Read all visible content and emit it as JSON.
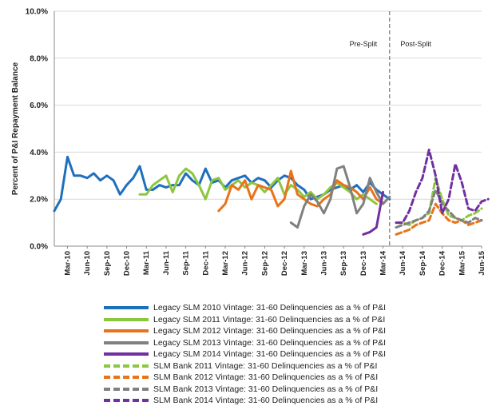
{
  "chart_data": {
    "type": "line",
    "ylabel": "Percent of P&I Repayment  Balance",
    "ylim": [
      0,
      10
    ],
    "y_ticks": [
      "0.0%",
      "2.0%",
      "4.0%",
      "6.0%",
      "8.0%",
      "10.0%"
    ],
    "y_tick_values": [
      0,
      2,
      4,
      6,
      8,
      10
    ],
    "x_ticks": [
      "Mar-10",
      "Jun-10",
      "Sep-10",
      "Dec-10",
      "Mar-11",
      "Jun-11",
      "Sep-11",
      "Dec-11",
      "Mar-12",
      "Jun-12",
      "Sep-12",
      "Dec-12",
      "Mar-13",
      "Jun-13",
      "Sep-13",
      "Dec-13",
      "Mar-14",
      "Jun-14",
      "Sep-14",
      "Dec-14",
      "Mar-15",
      "Jun-15"
    ],
    "x_tick_months": [
      "2010-03",
      "2010-06",
      "2010-09",
      "2010-12",
      "2011-03",
      "2011-06",
      "2011-09",
      "2011-12",
      "2012-03",
      "2012-06",
      "2012-09",
      "2012-12",
      "2013-03",
      "2013-06",
      "2013-09",
      "2013-12",
      "2014-03",
      "2014-06",
      "2014-09",
      "2014-12",
      "2015-03",
      "2015-06"
    ],
    "split_date": "2014-04",
    "regions": [
      {
        "label": "Pre-Split",
        "x": "2013-12"
      },
      {
        "label": "Post-Split",
        "x": "2014-08"
      }
    ],
    "series": [
      {
        "name": "Legacy SLM 2010 Vintage: 31-60 Delinquencies as a % of P&I",
        "color": "#1f6fbf",
        "dash": false,
        "start": "2010-01",
        "values": [
          1.5,
          2.0,
          3.8,
          3.0,
          3.0,
          2.9,
          3.1,
          2.8,
          3.0,
          2.8,
          2.2,
          2.6,
          2.9,
          3.4,
          2.4,
          2.4,
          2.6,
          2.5,
          2.6,
          2.6,
          3.1,
          2.8,
          2.6,
          3.3,
          2.7,
          2.8,
          2.5,
          2.8,
          2.9,
          3.0,
          2.7,
          2.9,
          2.8,
          2.5,
          2.8,
          3.0,
          2.9,
          2.6,
          2.4,
          2.0,
          2.1,
          2.2,
          2.4,
          2.5,
          2.6,
          2.4,
          2.6,
          2.3,
          2.7,
          2.4,
          2.2,
          2.0
        ]
      },
      {
        "name": "Legacy SLM 2011 Vintage: 31-60 Delinquencies as a % of P&I",
        "color": "#8dc63f",
        "dash": false,
        "start": "2011-02",
        "values": [
          2.2,
          2.2,
          2.6,
          2.8,
          3.0,
          2.3,
          3.0,
          3.3,
          3.1,
          2.6,
          2.0,
          2.8,
          2.9,
          2.4,
          2.6,
          2.8,
          2.5,
          2.7,
          2.6,
          2.3,
          2.6,
          2.9,
          2.2,
          2.6,
          2.4,
          2.1,
          2.3,
          2.0,
          2.2,
          2.5,
          2.7,
          2.5,
          2.3,
          2.0,
          2.2,
          2.0,
          1.8
        ]
      },
      {
        "name": "Legacy SLM 2012 Vintage: 31-60 Delinquencies as a % of P&I",
        "color": "#e8731a",
        "dash": false,
        "start": "2012-02",
        "values": [
          1.5,
          1.8,
          2.6,
          2.4,
          2.8,
          2.0,
          2.6,
          2.5,
          2.4,
          1.7,
          2.0,
          3.2,
          2.2,
          2.0,
          1.8,
          1.7,
          2.0,
          2.2,
          2.8,
          2.6,
          2.5,
          2.3,
          2.0,
          2.5,
          2.0,
          1.8
        ]
      },
      {
        "name": "Legacy SLM 2013 Vintage: 31-60 Delinquencies as a % of P&I",
        "color": "#808080",
        "dash": false,
        "start": "2013-01",
        "values": [
          1.0,
          0.8,
          1.7,
          2.2,
          1.9,
          1.4,
          2.0,
          3.3,
          3.4,
          2.5,
          1.4,
          1.8,
          2.9,
          2.3,
          1.8,
          2.1
        ]
      },
      {
        "name": "Legacy SLM 2014 Vintage: 31-60 Delinquencies as a % of P&I",
        "color": "#7030a0",
        "dash": false,
        "start": "2013-12",
        "values": [
          0.5,
          0.6,
          0.8,
          2.3
        ]
      },
      {
        "name": "SLM Bank 2011 Vintage: 31-60 Delinquencies as a % of P&I",
        "color": "#8dc63f",
        "dash": true,
        "start": "2014-05",
        "values": [
          1.0,
          1.0,
          0.9,
          1.1,
          1.2,
          1.4,
          2.9,
          2.0,
          1.3,
          1.2,
          1.1,
          1.3,
          1.4,
          1.6
        ]
      },
      {
        "name": "SLM Bank 2012 Vintage: 31-60 Delinquencies as a % of P&I",
        "color": "#e8731a",
        "dash": true,
        "start": "2014-05",
        "values": [
          0.5,
          0.6,
          0.7,
          0.9,
          1.0,
          1.1,
          1.8,
          1.4,
          1.1,
          1.0,
          1.1,
          0.9,
          1.0,
          1.1
        ]
      },
      {
        "name": "SLM Bank 2013 Vintage: 31-60 Delinquencies as a % of P&I",
        "color": "#808080",
        "dash": true,
        "start": "2014-05",
        "values": [
          0.8,
          0.9,
          1.0,
          1.1,
          1.2,
          1.5,
          2.4,
          1.8,
          1.5,
          1.2,
          1.1,
          1.0,
          1.2,
          1.1
        ]
      },
      {
        "name": "SLM Bank 2014 Vintage: 31-60 Delinquencies as a % of P&I",
        "color": "#7030a0",
        "dash": true,
        "start": "2014-05",
        "values": [
          1.0,
          1.0,
          1.5,
          2.3,
          2.9,
          4.1,
          3.0,
          1.4,
          2.0,
          3.5,
          2.7,
          1.6,
          1.5,
          1.9,
          2.0
        ]
      }
    ]
  }
}
